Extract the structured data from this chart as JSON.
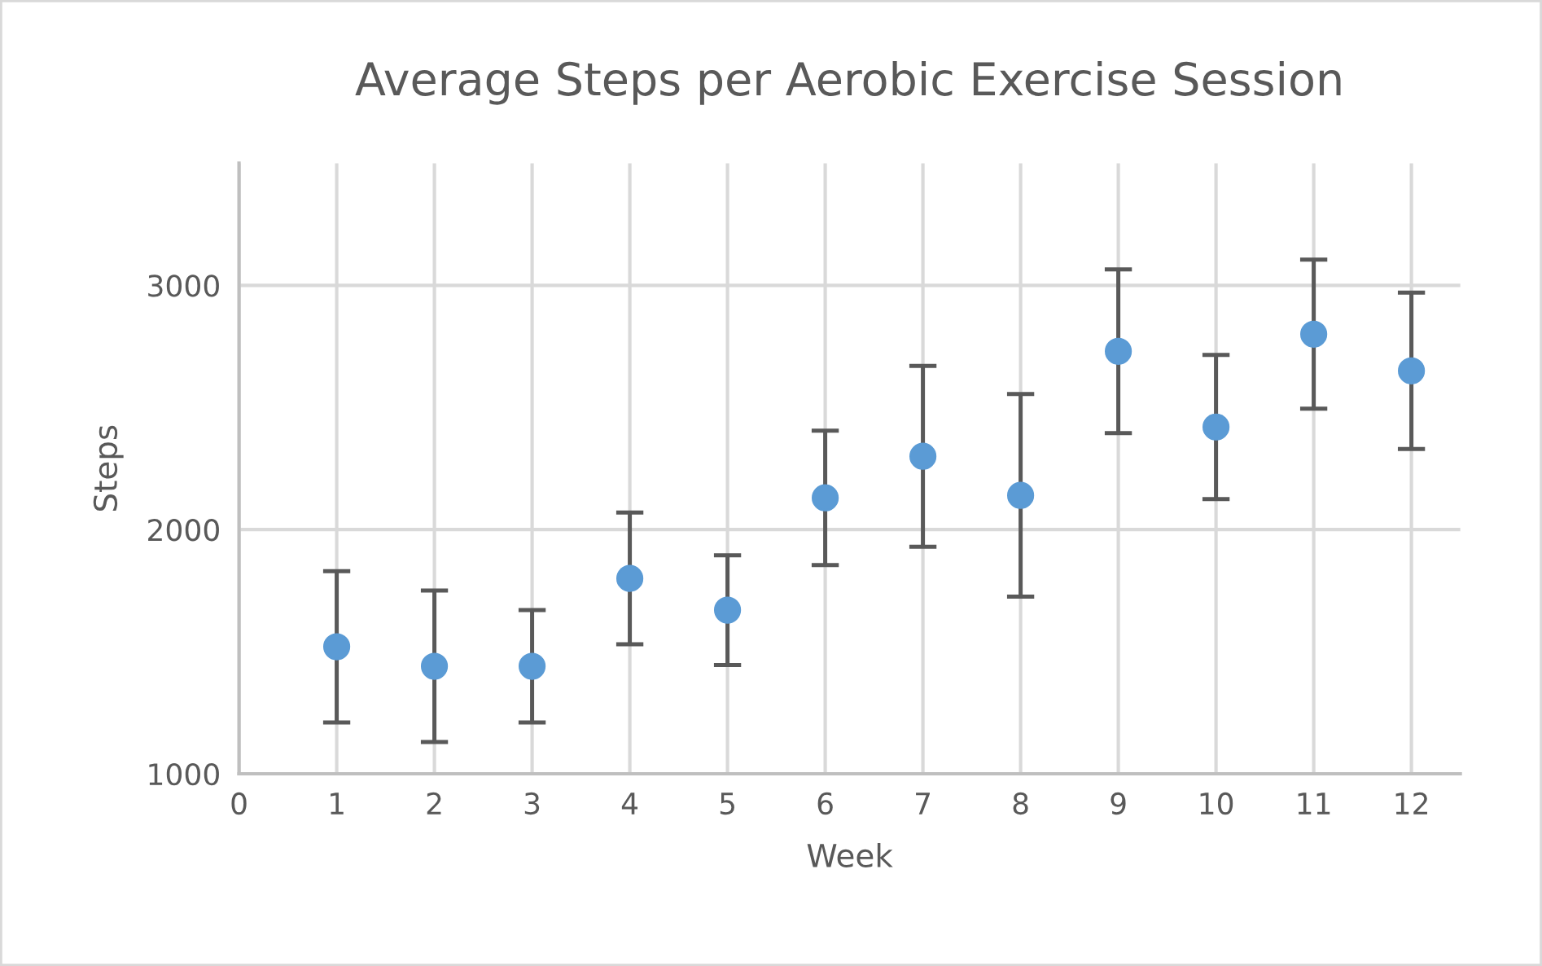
{
  "chart_data": {
    "type": "scatter",
    "title": "Average Steps per Aerobic Exercise Session",
    "xlabel": "Week",
    "ylabel": "Steps",
    "x": [
      1,
      2,
      3,
      4,
      5,
      6,
      7,
      8,
      9,
      10,
      11,
      12
    ],
    "series": [
      {
        "color": "#5b9bd5",
        "values": [
          1520,
          1440,
          1440,
          1800,
          1670,
          2130,
          2300,
          2140,
          2730,
          2420,
          2800,
          2650
        ],
        "errors": [
          310,
          310,
          230,
          270,
          225,
          275,
          370,
          415,
          335,
          295,
          305,
          320
        ]
      }
    ],
    "xlim": [
      0,
      12.5
    ],
    "xticks": [
      0,
      1,
      2,
      3,
      4,
      5,
      6,
      7,
      8,
      9,
      10,
      11,
      12
    ],
    "ylim": [
      1000,
      3500
    ],
    "yticks": [
      1000,
      2000,
      3000
    ],
    "grid": true,
    "marker": "circle"
  }
}
